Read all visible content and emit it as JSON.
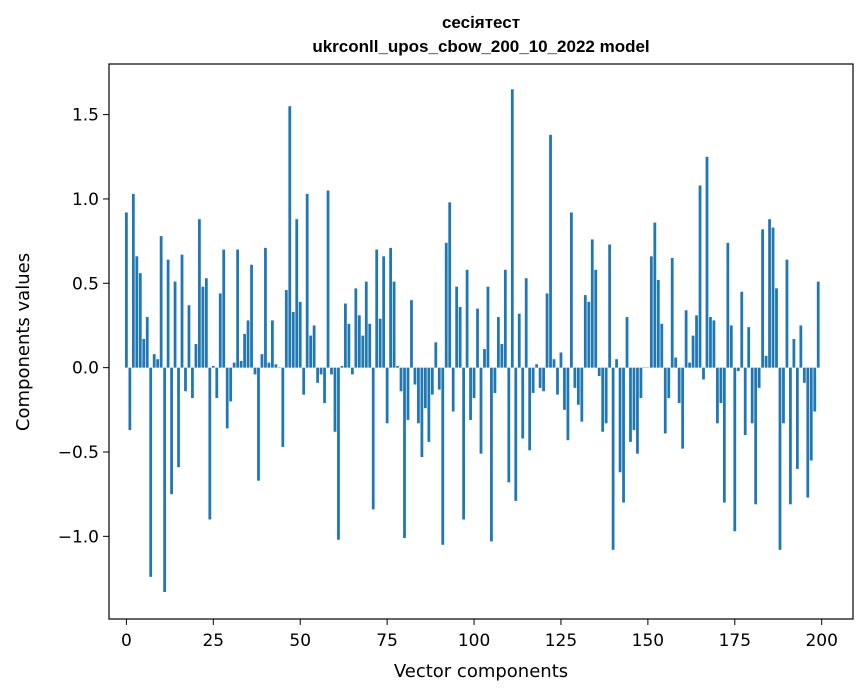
{
  "chart_data": {
    "type": "bar",
    "title": "сесіятест",
    "subtitle": "ukrconll_upos_cbow_200_10_2022 model",
    "xlabel": "Vector components",
    "ylabel": "Components values",
    "xlim": [
      -5,
      209
    ],
    "ylim": [
      -1.49,
      1.8
    ],
    "xticks": [
      0,
      25,
      50,
      75,
      100,
      125,
      150,
      175,
      200
    ],
    "xtick_labels": [
      "0",
      "25",
      "50",
      "75",
      "100",
      "125",
      "150",
      "175",
      "200"
    ],
    "yticks": [
      1.5,
      1.0,
      0.5,
      0.0,
      -0.5,
      -1.0
    ],
    "ytick_labels": [
      "1.5",
      "1.0",
      "0.5",
      "0.0",
      "−0.5",
      "−1.0"
    ],
    "grid": false,
    "bar_color": "#1f77b4",
    "values": [
      0.92,
      -0.37,
      1.03,
      0.66,
      0.56,
      0.17,
      0.3,
      -1.24,
      0.08,
      0.05,
      0.78,
      -1.33,
      0.64,
      -0.75,
      0.51,
      -0.59,
      0.67,
      -0.14,
      0.37,
      -0.18,
      0.14,
      0.88,
      0.48,
      0.53,
      -0.9,
      0.01,
      -0.18,
      0.44,
      0.7,
      -0.36,
      -0.2,
      0.03,
      0.7,
      0.04,
      0.2,
      0.28,
      0.61,
      -0.04,
      -0.67,
      0.08,
      0.71,
      0.03,
      0.28,
      0.02,
      0.0,
      -0.47,
      0.46,
      1.55,
      0.33,
      0.88,
      0.39,
      -0.16,
      1.03,
      0.19,
      0.25,
      -0.09,
      -0.04,
      -0.21,
      1.05,
      -0.04,
      -0.38,
      -1.02,
      0.01,
      0.38,
      0.26,
      -0.04,
      0.47,
      0.31,
      0.19,
      0.51,
      0.26,
      -0.84,
      0.7,
      0.29,
      0.66,
      -0.33,
      0.71,
      0.51,
      0.01,
      -0.14,
      -1.01,
      -0.31,
      0.4,
      -0.1,
      -0.33,
      -0.53,
      -0.24,
      -0.44,
      -0.16,
      0.15,
      -0.13,
      -1.05,
      0.74,
      0.98,
      -0.26,
      0.48,
      0.36,
      -0.9,
      0.58,
      -0.31,
      -0.18,
      0.35,
      -0.51,
      0.11,
      0.48,
      -1.03,
      -0.15,
      0.3,
      0.14,
      0.58,
      -0.68,
      1.65,
      -0.79,
      0.32,
      -0.42,
      0.53,
      -0.49,
      -0.15,
      0.02,
      -0.12,
      -0.14,
      0.44,
      1.38,
      0.05,
      -0.16,
      0.09,
      -0.25,
      -0.43,
      0.92,
      -0.12,
      -0.22,
      -0.32,
      0.43,
      0.39,
      0.76,
      0.58,
      -0.05,
      -0.38,
      -0.33,
      0.73,
      -1.08,
      0.05,
      -0.62,
      -0.8,
      0.3,
      -0.44,
      -0.37,
      -0.51,
      -0.18,
      0.0,
      0.0,
      0.66,
      0.86,
      0.52,
      0.26,
      -0.39,
      -0.18,
      0.65,
      0.06,
      -0.21,
      -0.48,
      0.34,
      0.03,
      0.19,
      0.31,
      1.08,
      -0.07,
      1.25,
      0.3,
      0.28,
      -0.33,
      -0.21,
      -0.8,
      0.74,
      0.25,
      -0.97,
      -0.02,
      0.45,
      -0.4,
      0.24,
      -0.33,
      -0.81,
      -0.12,
      0.82,
      0.07,
      0.88,
      0.83,
      0.47,
      -1.08,
      -0.33,
      0.64,
      -0.81,
      0.17,
      -0.6,
      0.25,
      -0.09,
      -0.77,
      -0.55,
      -0.26,
      0.51
    ]
  }
}
